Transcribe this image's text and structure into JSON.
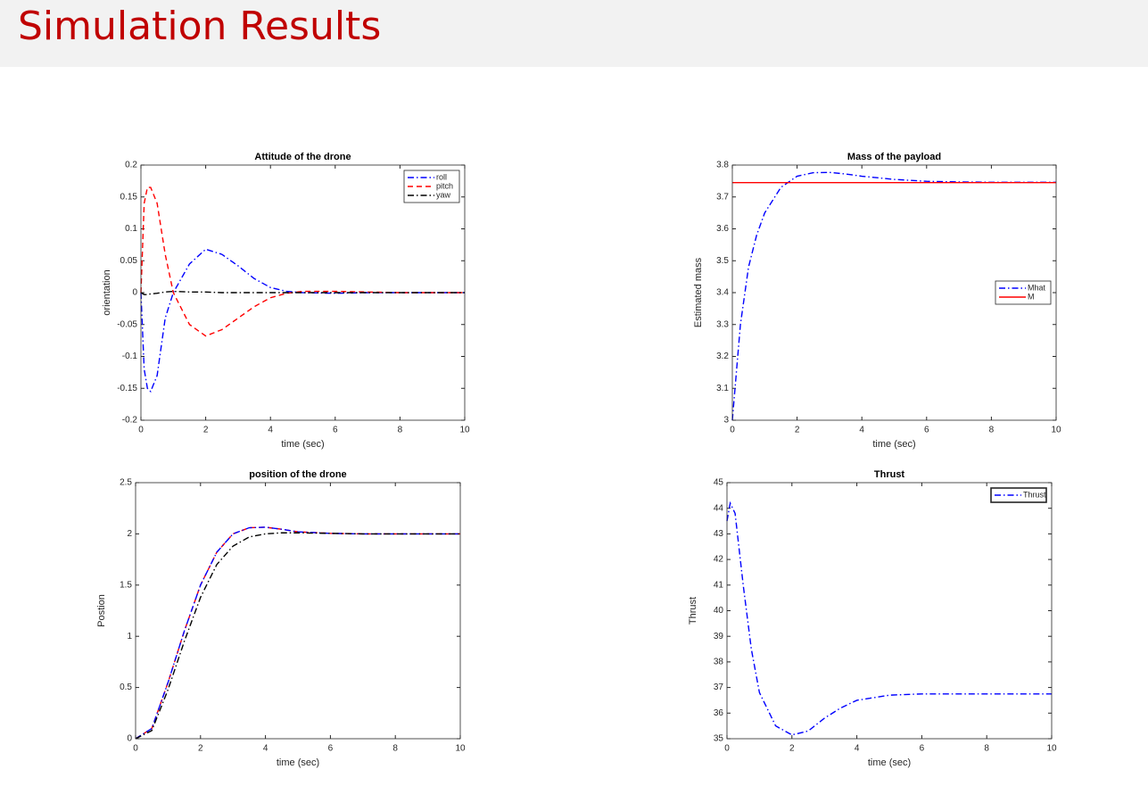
{
  "header": {
    "title": "Simulation Results"
  },
  "chart_data": [
    {
      "type": "line",
      "title": "Attitude of the drone",
      "x_label": "time (sec)",
      "y_label": "orientation",
      "x": [
        0,
        0.1,
        0.2,
        0.3,
        0.5,
        0.75,
        1,
        1.5,
        2,
        2.5,
        3,
        3.5,
        4,
        4.5,
        5,
        6,
        7,
        8,
        9,
        10
      ],
      "series": [
        {
          "name": "roll",
          "color": "#0000ff",
          "dash": "dashdot",
          "values": [
            0,
            -0.12,
            -0.15,
            -0.155,
            -0.13,
            -0.04,
            0,
            0.045,
            0.068,
            0.06,
            0.042,
            0.022,
            0.008,
            0.002,
            0,
            -0.001,
            0,
            0,
            0,
            0
          ]
        },
        {
          "name": "pitch",
          "color": "#ff0000",
          "dash": "dashed",
          "values": [
            0,
            0.14,
            0.165,
            0.165,
            0.14,
            0.06,
            0,
            -0.05,
            -0.068,
            -0.058,
            -0.04,
            -0.022,
            -0.008,
            -0.001,
            0.002,
            0.002,
            0.001,
            0,
            0,
            0
          ]
        },
        {
          "name": "yaw",
          "color": "#000000",
          "dash": "dashdot",
          "values": [
            0,
            -0.003,
            -0.003,
            -0.002,
            -0.001,
            0.001,
            0.002,
            0.001,
            0.001,
            0,
            0,
            0,
            0,
            0,
            0,
            0,
            0,
            0,
            0,
            0
          ]
        }
      ],
      "xlim": [
        0,
        10
      ],
      "xticks": [
        0,
        2,
        4,
        6,
        8,
        10
      ],
      "ylim": [
        -0.2,
        0.2
      ],
      "yticks": [
        -0.2,
        -0.15,
        -0.1,
        -0.05,
        0,
        0.05,
        0.1,
        0.15,
        0.2
      ],
      "legend": "northeast"
    },
    {
      "type": "line",
      "title": "Mass of the payload",
      "x_label": "time (sec)",
      "y_label": "Estimated mass",
      "x": [
        0,
        0.25,
        0.5,
        0.75,
        1,
        1.5,
        2,
        2.5,
        3,
        3.5,
        4,
        5,
        6,
        7,
        8,
        10
      ],
      "series": [
        {
          "name": "Mhat",
          "color": "#0000ff",
          "dash": "dashdot",
          "values": [
            3,
            3.3,
            3.48,
            3.58,
            3.65,
            3.73,
            3.765,
            3.776,
            3.777,
            3.772,
            3.765,
            3.755,
            3.749,
            3.747,
            3.746,
            3.746
          ]
        },
        {
          "name": "M",
          "color": "#ff0000",
          "dash": "solid",
          "values": [
            3.745,
            3.745,
            3.745,
            3.745,
            3.745,
            3.745,
            3.745,
            3.745,
            3.745,
            3.745,
            3.745,
            3.745,
            3.745,
            3.745,
            3.745,
            3.745
          ]
        }
      ],
      "xlim": [
        0,
        10
      ],
      "xticks": [
        0,
        2,
        4,
        6,
        8,
        10
      ],
      "ylim": [
        3,
        3.8
      ],
      "yticks": [
        3,
        3.1,
        3.2,
        3.3,
        3.4,
        3.5,
        3.6,
        3.7,
        3.8
      ],
      "legend": "east"
    },
    {
      "type": "line",
      "title": "position of the drone",
      "x_label": "time (sec)",
      "y_label": "Postion",
      "x": [
        0,
        0.5,
        1,
        1.5,
        2,
        2.5,
        3,
        3.5,
        4,
        4.5,
        5,
        6,
        7,
        8,
        10
      ],
      "series": [
        {
          "color": "#ff0000",
          "dash": "dashed",
          "values": [
            0,
            0.1,
            0.55,
            1.05,
            1.5,
            1.82,
            2.0,
            2.06,
            2.065,
            2.045,
            2.02,
            2.005,
            2.0,
            2.0,
            2.0
          ]
        },
        {
          "color": "#0000ff",
          "dash": "dashdot",
          "values": [
            0,
            0.1,
            0.55,
            1.05,
            1.5,
            1.82,
            2.0,
            2.06,
            2.065,
            2.045,
            2.02,
            2.005,
            2.0,
            2.0,
            2.0
          ]
        },
        {
          "color": "#000000",
          "dash": "dashdot",
          "values": [
            0,
            0.08,
            0.48,
            0.95,
            1.38,
            1.7,
            1.88,
            1.97,
            2.0,
            2.01,
            2.01,
            2.005,
            2.0,
            2.0,
            2.0
          ]
        }
      ],
      "xlim": [
        0,
        10
      ],
      "xticks": [
        0,
        2,
        4,
        6,
        8,
        10
      ],
      "ylim": [
        0,
        2.5
      ],
      "yticks": [
        0,
        0.5,
        1,
        1.5,
        2,
        2.5
      ]
    },
    {
      "type": "line",
      "title": "Thrust",
      "x_label": "time (sec)",
      "y_label": "Thrust",
      "x": [
        0,
        0.1,
        0.25,
        0.5,
        0.75,
        1,
        1.5,
        2,
        2.5,
        3,
        3.5,
        4,
        5,
        6,
        7,
        8,
        10
      ],
      "series": [
        {
          "name": "Thrust",
          "color": "#0000ff",
          "dash": "dashdot",
          "values": [
            43.5,
            44.2,
            43.8,
            41,
            38.5,
            36.8,
            35.5,
            35.15,
            35.3,
            35.8,
            36.2,
            36.5,
            36.7,
            36.75,
            36.75,
            36.75,
            36.75
          ]
        }
      ],
      "xlim": [
        0,
        10
      ],
      "xticks": [
        0,
        2,
        4,
        6,
        8,
        10
      ],
      "ylim": [
        35,
        45
      ],
      "yticks": [
        35,
        36,
        37,
        38,
        39,
        40,
        41,
        42,
        43,
        44,
        45
      ],
      "legend": "northeast"
    }
  ]
}
